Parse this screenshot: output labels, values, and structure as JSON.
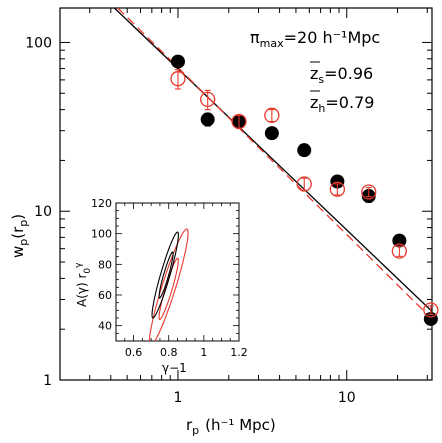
{
  "chart_data": [
    {
      "type": "scatter",
      "xlabel": "r",
      "xlabel_sub": "p",
      "xlabel_unit": "(h⁻¹ Mpc)",
      "ylabel": "w",
      "ylabel_sub": "p",
      "ylabel_arg": "(r",
      "ylabel_arg_sub": "p",
      "ylabel_close": ")",
      "xscale": "log",
      "yscale": "log",
      "xlim": [
        0.2,
        32
      ],
      "ylim": [
        1,
        160
      ],
      "xticks": [
        {
          "value": 1,
          "label": "1"
        },
        {
          "value": 10,
          "label": "10"
        }
      ],
      "yticks": [
        {
          "value": 1,
          "label": "1"
        },
        {
          "value": 10,
          "label": "10"
        },
        {
          "value": 100,
          "label": "100"
        }
      ],
      "annotations": {
        "pi_symbol": "π",
        "pi_sub": "max",
        "pi_value": "=20  h⁻¹Mpc",
        "zs_symbol": "z",
        "zs_sub": "s",
        "zs_value": "=0.96",
        "zh_symbol": "z",
        "zh_sub": "h",
        "zh_value": "=0.79"
      },
      "series": [
        {
          "color": "#000000",
          "marker": "filled-circle",
          "points": [
            {
              "x": 1.0,
              "y": 77,
              "err": 5
            },
            {
              "x": 1.5,
              "y": 35,
              "err": 3
            },
            {
              "x": 2.3,
              "y": 34,
              "err": 2
            },
            {
              "x": 3.6,
              "y": 29,
              "err": 2
            },
            {
              "x": 5.6,
              "y": 23,
              "err": 1.5
            },
            {
              "x": 8.8,
              "y": 15,
              "err": 1
            },
            {
              "x": 13.5,
              "y": 12.3,
              "err": 1
            },
            {
              "x": 20.5,
              "y": 6.7,
              "err": 0.4
            },
            {
              "x": 31.5,
              "y": 2.3,
              "err": 0.15
            }
          ],
          "fit": {
            "x": [
              0.42,
              32
            ],
            "y": [
              160,
              2.55
            ],
            "style": "solid"
          }
        },
        {
          "color": "#e8392d",
          "marker": "open-circle",
          "points": [
            {
              "x": 1.0,
              "y": 61,
              "err": 8
            },
            {
              "x": 1.5,
              "y": 46,
              "err": 6
            },
            {
              "x": 2.3,
              "y": 34,
              "err": 3
            },
            {
              "x": 3.6,
              "y": 37,
              "err": 3
            },
            {
              "x": 5.6,
              "y": 14.5,
              "err": 1.2
            },
            {
              "x": 8.8,
              "y": 13.5,
              "err": 1
            },
            {
              "x": 13.5,
              "y": 13,
              "err": 0.8
            },
            {
              "x": 20.5,
              "y": 5.8,
              "err": 0.4
            },
            {
              "x": 31.5,
              "y": 2.6,
              "err": 0.15
            }
          ],
          "fit": {
            "x": [
              0.44,
              32
            ],
            "y": [
              160,
              2.3
            ],
            "style": "dashed"
          }
        }
      ]
    },
    {
      "type": "contour",
      "xlabel": "γ−1",
      "ylabel": "A(γ) r",
      "ylabel_sub": "0",
      "ylabel_sup": "γ",
      "xlim": [
        0.5,
        1.2
      ],
      "ylim": [
        30,
        120
      ],
      "xticks": [
        {
          "value": 0.6,
          "label": "0.6"
        },
        {
          "value": 0.8,
          "label": "0.8"
        },
        {
          "value": 1.0,
          "label": "1"
        },
        {
          "value": 1.2,
          "label": "1.2"
        }
      ],
      "yticks": [
        {
          "value": 40,
          "label": "40"
        },
        {
          "value": 60,
          "label": "60"
        },
        {
          "value": 80,
          "label": "80"
        },
        {
          "value": 100,
          "label": "100"
        },
        {
          "value": 120,
          "label": "120"
        }
      ],
      "ellipses": [
        {
          "color": "#e8392d",
          "cx": 0.8,
          "cy": 64,
          "rx": 0.055,
          "ry": 20,
          "note": "inner"
        },
        {
          "color": "#e8392d",
          "cx": 0.8,
          "cy": 65,
          "rx": 0.11,
          "ry": 38,
          "note": "outer"
        },
        {
          "color": "#000000",
          "cx": 0.785,
          "cy": 73,
          "rx": 0.04,
          "ry": 15,
          "note": "inner"
        },
        {
          "color": "#000000",
          "cx": 0.78,
          "cy": 73,
          "rx": 0.075,
          "ry": 28,
          "note": "outer"
        }
      ]
    }
  ]
}
